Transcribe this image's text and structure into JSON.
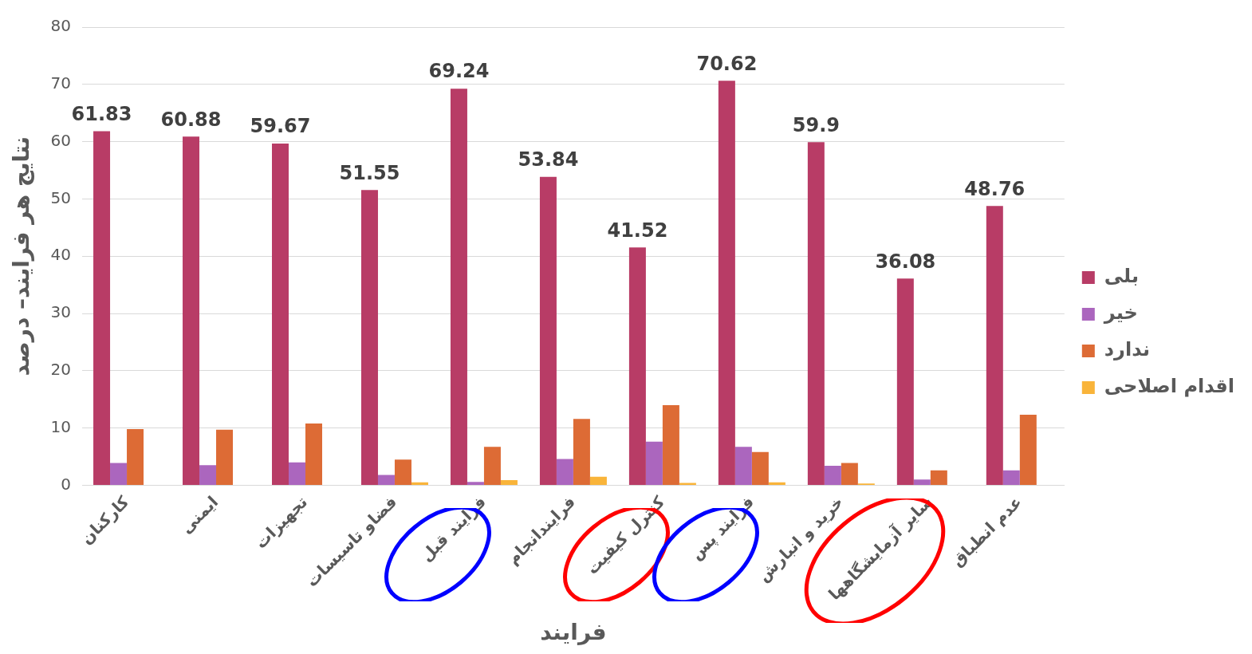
{
  "chart_data": {
    "type": "bar",
    "xlabel": "فرایند",
    "ylabel": "نتایج هر فرایند– درصد",
    "categories": [
      "کارکنان",
      "ایمنی",
      "تجهیزات",
      "فضاو تاسیسات",
      "فرایند قبل",
      "فرایندانجام",
      "کنترل کیفیت",
      "فرایند پس",
      "خرید و انبارش",
      "سایر آزمایشگاهها",
      "عدم انطباق"
    ],
    "series": [
      {
        "name": "بلی",
        "color": "#b83c66",
        "values": [
          61.83,
          60.88,
          59.67,
          51.55,
          69.24,
          53.84,
          41.52,
          70.62,
          59.9,
          36.08,
          48.76
        ],
        "value_labels": [
          "61.83",
          "60.88",
          "59.67",
          "51.55",
          "69.24",
          "53.84",
          "41.52",
          "70.62",
          "59.9",
          "36.08",
          "48.76"
        ]
      },
      {
        "name": "خیر",
        "color": "#ab66be",
        "values": [
          3.9,
          3.5,
          4.0,
          1.8,
          0.6,
          4.6,
          7.6,
          6.7,
          3.4,
          1.0,
          2.6
        ]
      },
      {
        "name": "ندارد",
        "color": "#dd6b35",
        "values": [
          9.8,
          9.7,
          10.8,
          4.5,
          6.7,
          11.6,
          14.0,
          5.8,
          3.9,
          2.6,
          12.3
        ]
      },
      {
        "name": "اقدام اصلاحی",
        "color": "#f9b43a",
        "values": [
          null,
          null,
          null,
          0.5,
          0.9,
          1.5,
          0.4,
          0.5,
          0.3,
          null,
          null
        ]
      }
    ],
    "ylim": [
      0,
      80
    ],
    "yticks": [
      0,
      10,
      20,
      30,
      40,
      50,
      60,
      70,
      80
    ],
    "grid": "y",
    "legend": "right"
  }
}
